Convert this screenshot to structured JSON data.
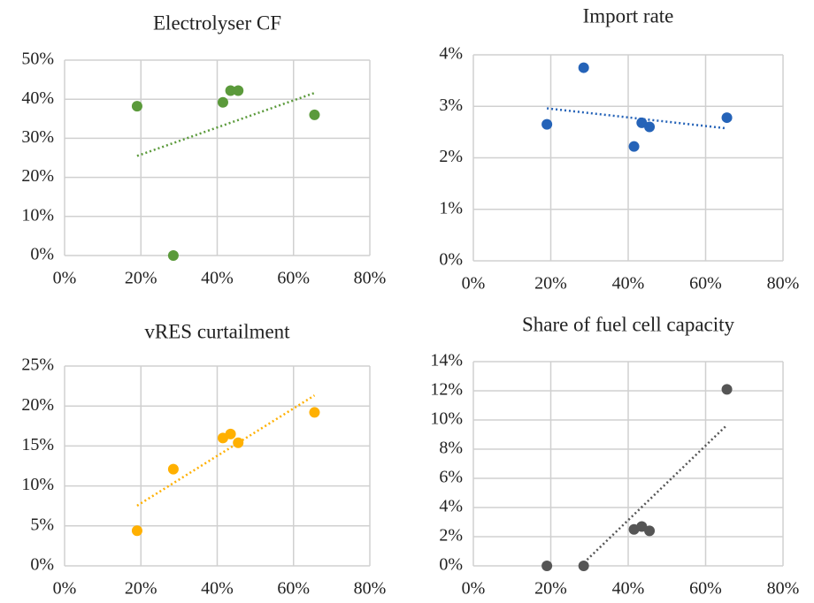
{
  "chart_data": [
    {
      "type": "scatter",
      "title": "Electrolyser CF",
      "color": "#5b9a3b",
      "trendline": "linear",
      "grid": true,
      "x": [
        19,
        28.5,
        41.5,
        43.5,
        45.5,
        65.5
      ],
      "values": [
        38.2,
        0,
        39.2,
        42.2,
        42.2,
        36
      ],
      "xlim": [
        0,
        80
      ],
      "xticks": [
        {
          "value": 0,
          "label": "0%"
        },
        {
          "value": 20,
          "label": "20%"
        },
        {
          "value": 40,
          "label": "40%"
        },
        {
          "value": 60,
          "label": "60%"
        },
        {
          "value": 80,
          "label": "80%"
        }
      ],
      "ylim": [
        0,
        50
      ],
      "yticks": [
        {
          "value": 0,
          "label": "0%"
        },
        {
          "value": 10,
          "label": "10%"
        },
        {
          "value": 20,
          "label": "20%"
        },
        {
          "value": 30,
          "label": "30%"
        },
        {
          "value": 40,
          "label": "40%"
        },
        {
          "value": 50,
          "label": "50%"
        }
      ]
    },
    {
      "type": "scatter",
      "title": "Import rate",
      "color": "#2563b8",
      "trendline": "linear",
      "grid": true,
      "x": [
        19,
        28.5,
        41.5,
        43.5,
        45.5,
        65.5
      ],
      "values": [
        2.65,
        3.75,
        2.22,
        2.68,
        2.6,
        2.78
      ],
      "xlim": [
        0,
        80
      ],
      "xticks": [
        {
          "value": 0,
          "label": "0%"
        },
        {
          "value": 20,
          "label": "20%"
        },
        {
          "value": 40,
          "label": "40%"
        },
        {
          "value": 60,
          "label": "60%"
        },
        {
          "value": 80,
          "label": "80%"
        }
      ],
      "ylim": [
        0,
        4
      ],
      "yticks": [
        {
          "value": 0,
          "label": "0%"
        },
        {
          "value": 1,
          "label": "1%"
        },
        {
          "value": 2,
          "label": "2%"
        },
        {
          "value": 3,
          "label": "3%"
        },
        {
          "value": 4,
          "label": "4%"
        }
      ]
    },
    {
      "type": "scatter",
      "title": "vRES curtailment",
      "color": "#ffb000",
      "trendline": "linear",
      "grid": true,
      "x": [
        19,
        28.5,
        41.5,
        43.5,
        45.5,
        65.5
      ],
      "values": [
        4.4,
        12.1,
        16.0,
        16.5,
        15.4,
        19.2
      ],
      "xlim": [
        0,
        80
      ],
      "xticks": [
        {
          "value": 0,
          "label": "0%"
        },
        {
          "value": 20,
          "label": "20%"
        },
        {
          "value": 40,
          "label": "40%"
        },
        {
          "value": 60,
          "label": "60%"
        },
        {
          "value": 80,
          "label": "80%"
        }
      ],
      "ylim": [
        0,
        25
      ],
      "yticks": [
        {
          "value": 0,
          "label": "0%"
        },
        {
          "value": 5,
          "label": "5%"
        },
        {
          "value": 10,
          "label": "10%"
        },
        {
          "value": 15,
          "label": "15%"
        },
        {
          "value": 20,
          "label": "20%"
        },
        {
          "value": 25,
          "label": "25%"
        }
      ]
    },
    {
      "type": "scatter",
      "title": "Share of fuel cell capacity",
      "color": "#555555",
      "trendline": "linear",
      "grid": true,
      "x": [
        19,
        28.5,
        41.5,
        43.5,
        45.5,
        65.5
      ],
      "values": [
        0,
        0,
        2.5,
        2.7,
        2.4,
        12.1
      ],
      "xlim": [
        0,
        80
      ],
      "xticks": [
        {
          "value": 0,
          "label": "0%"
        },
        {
          "value": 20,
          "label": "20%"
        },
        {
          "value": 40,
          "label": "40%"
        },
        {
          "value": 60,
          "label": "60%"
        },
        {
          "value": 80,
          "label": "80%"
        }
      ],
      "ylim": [
        0,
        14
      ],
      "yticks": [
        {
          "value": 0,
          "label": "0%"
        },
        {
          "value": 2,
          "label": "2%"
        },
        {
          "value": 4,
          "label": "4%"
        },
        {
          "value": 6,
          "label": "6%"
        },
        {
          "value": 8,
          "label": "8%"
        },
        {
          "value": 10,
          "label": "10%"
        },
        {
          "value": 12,
          "label": "12%"
        },
        {
          "value": 14,
          "label": "14%"
        }
      ]
    }
  ]
}
